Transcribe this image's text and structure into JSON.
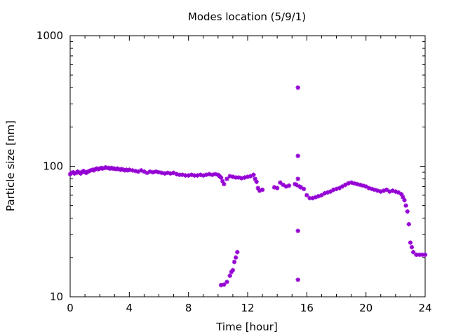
{
  "chart_data": {
    "type": "scatter",
    "title": "Modes location (5/9/1)",
    "xlabel": "Time [hour]",
    "ylabel": "Particle size [nm]",
    "xlim": [
      0,
      24
    ],
    "ylim": [
      10,
      1000
    ],
    "yscale": "log",
    "grid": false,
    "x_ticks": [
      0,
      4,
      8,
      12,
      16,
      20,
      24
    ],
    "x_tick_labels": [
      "0",
      "4",
      "8",
      "12",
      "16",
      "20",
      "24"
    ],
    "y_ticks": [
      10,
      100,
      1000
    ],
    "y_tick_labels": [
      "10",
      "100",
      "1000"
    ],
    "marker_color": "#9400d3",
    "marker": "asterisk",
    "series": [
      {
        "points": [
          [
            0.0,
            87
          ],
          [
            0.1,
            89
          ],
          [
            0.2,
            90
          ],
          [
            0.3,
            88
          ],
          [
            0.4,
            89
          ],
          [
            0.5,
            91
          ],
          [
            0.6,
            90
          ],
          [
            0.7,
            88
          ],
          [
            0.8,
            90
          ],
          [
            0.9,
            92
          ],
          [
            1.0,
            90
          ],
          [
            1.1,
            89
          ],
          [
            1.2,
            91
          ],
          [
            1.3,
            92
          ],
          [
            1.4,
            93
          ],
          [
            1.5,
            94
          ],
          [
            1.6,
            93
          ],
          [
            1.7,
            95
          ],
          [
            1.8,
            96
          ],
          [
            1.9,
            95
          ],
          [
            2.0,
            96
          ],
          [
            2.1,
            97
          ],
          [
            2.2,
            96
          ],
          [
            2.3,
            97
          ],
          [
            2.4,
            98
          ],
          [
            2.5,
            97
          ],
          [
            2.6,
            97
          ],
          [
            2.7,
            96
          ],
          [
            2.8,
            97
          ],
          [
            2.9,
            96
          ],
          [
            3.0,
            96
          ],
          [
            3.1,
            95
          ],
          [
            3.2,
            96
          ],
          [
            3.3,
            95
          ],
          [
            3.4,
            94
          ],
          [
            3.5,
            95
          ],
          [
            3.6,
            94
          ],
          [
            3.7,
            93
          ],
          [
            3.8,
            94
          ],
          [
            3.9,
            93
          ],
          [
            4.0,
            94
          ],
          [
            4.2,
            93
          ],
          [
            4.4,
            92
          ],
          [
            4.6,
            91
          ],
          [
            4.8,
            93
          ],
          [
            5.0,
            91
          ],
          [
            5.2,
            89
          ],
          [
            5.4,
            91
          ],
          [
            5.6,
            90
          ],
          [
            5.8,
            91
          ],
          [
            6.0,
            90
          ],
          [
            6.2,
            89
          ],
          [
            6.4,
            88
          ],
          [
            6.6,
            89
          ],
          [
            6.8,
            88
          ],
          [
            7.0,
            89
          ],
          [
            7.2,
            87
          ],
          [
            7.4,
            86
          ],
          [
            7.6,
            86
          ],
          [
            7.8,
            85
          ],
          [
            8.0,
            85
          ],
          [
            8.2,
            86
          ],
          [
            8.4,
            85
          ],
          [
            8.6,
            85
          ],
          [
            8.8,
            86
          ],
          [
            9.0,
            85
          ],
          [
            9.2,
            86
          ],
          [
            9.4,
            87
          ],
          [
            9.6,
            86
          ],
          [
            9.8,
            87
          ],
          [
            10.0,
            86
          ],
          [
            10.1,
            84
          ],
          [
            10.2,
            82
          ],
          [
            10.3,
            77
          ],
          [
            10.4,
            73
          ],
          [
            10.6,
            80
          ],
          [
            10.8,
            84
          ],
          [
            11.0,
            83
          ],
          [
            11.2,
            82
          ],
          [
            11.4,
            82
          ],
          [
            11.6,
            81
          ],
          [
            11.8,
            82
          ],
          [
            12.0,
            83
          ],
          [
            12.2,
            84
          ],
          [
            12.4,
            86
          ],
          [
            12.5,
            80
          ],
          [
            12.6,
            76
          ],
          [
            12.7,
            68
          ],
          [
            12.8,
            65
          ],
          [
            13.0,
            66
          ],
          [
            13.8,
            69
          ],
          [
            14.0,
            68
          ],
          [
            14.2,
            75
          ],
          [
            14.4,
            72
          ],
          [
            14.6,
            70
          ],
          [
            14.8,
            71
          ],
          [
            15.2,
            73
          ],
          [
            15.3,
            72
          ],
          [
            15.4,
            80
          ],
          [
            15.5,
            70
          ],
          [
            15.6,
            69
          ],
          [
            15.8,
            67
          ],
          [
            16.0,
            60
          ],
          [
            16.2,
            57
          ],
          [
            16.4,
            57
          ],
          [
            16.6,
            58
          ],
          [
            16.8,
            59
          ],
          [
            17.0,
            60
          ],
          [
            17.2,
            62
          ],
          [
            17.4,
            63
          ],
          [
            17.6,
            64
          ],
          [
            17.8,
            66
          ],
          [
            18.0,
            67
          ],
          [
            18.2,
            68
          ],
          [
            18.4,
            70
          ],
          [
            18.6,
            72
          ],
          [
            18.8,
            74
          ],
          [
            19.0,
            75
          ],
          [
            19.2,
            74
          ],
          [
            19.4,
            73
          ],
          [
            19.6,
            72
          ],
          [
            19.8,
            71
          ],
          [
            20.0,
            70
          ],
          [
            20.2,
            68
          ],
          [
            20.4,
            67
          ],
          [
            20.6,
            66
          ],
          [
            20.8,
            65
          ],
          [
            21.0,
            64
          ],
          [
            21.2,
            65
          ],
          [
            21.4,
            66
          ],
          [
            21.6,
            64
          ],
          [
            21.8,
            65
          ],
          [
            22.0,
            64
          ],
          [
            22.2,
            63
          ],
          [
            22.4,
            61
          ],
          [
            22.5,
            58
          ],
          [
            22.6,
            55
          ],
          [
            22.7,
            50
          ],
          [
            22.8,
            45
          ],
          [
            22.9,
            36
          ],
          [
            23.0,
            26
          ],
          [
            23.1,
            24
          ],
          [
            23.2,
            22
          ],
          [
            23.4,
            21
          ],
          [
            23.6,
            21
          ],
          [
            23.8,
            21
          ],
          [
            24.0,
            21
          ],
          [
            10.2,
            12.3
          ],
          [
            10.4,
            12.4
          ],
          [
            10.6,
            13.0
          ],
          [
            10.8,
            14.5
          ],
          [
            10.9,
            15.5
          ],
          [
            11.0,
            16.0
          ],
          [
            11.1,
            18.5
          ],
          [
            11.2,
            20.0
          ],
          [
            11.3,
            22.0
          ],
          [
            15.4,
            400
          ],
          [
            15.4,
            120
          ],
          [
            15.4,
            32
          ],
          [
            15.4,
            13.5
          ]
        ]
      }
    ]
  }
}
